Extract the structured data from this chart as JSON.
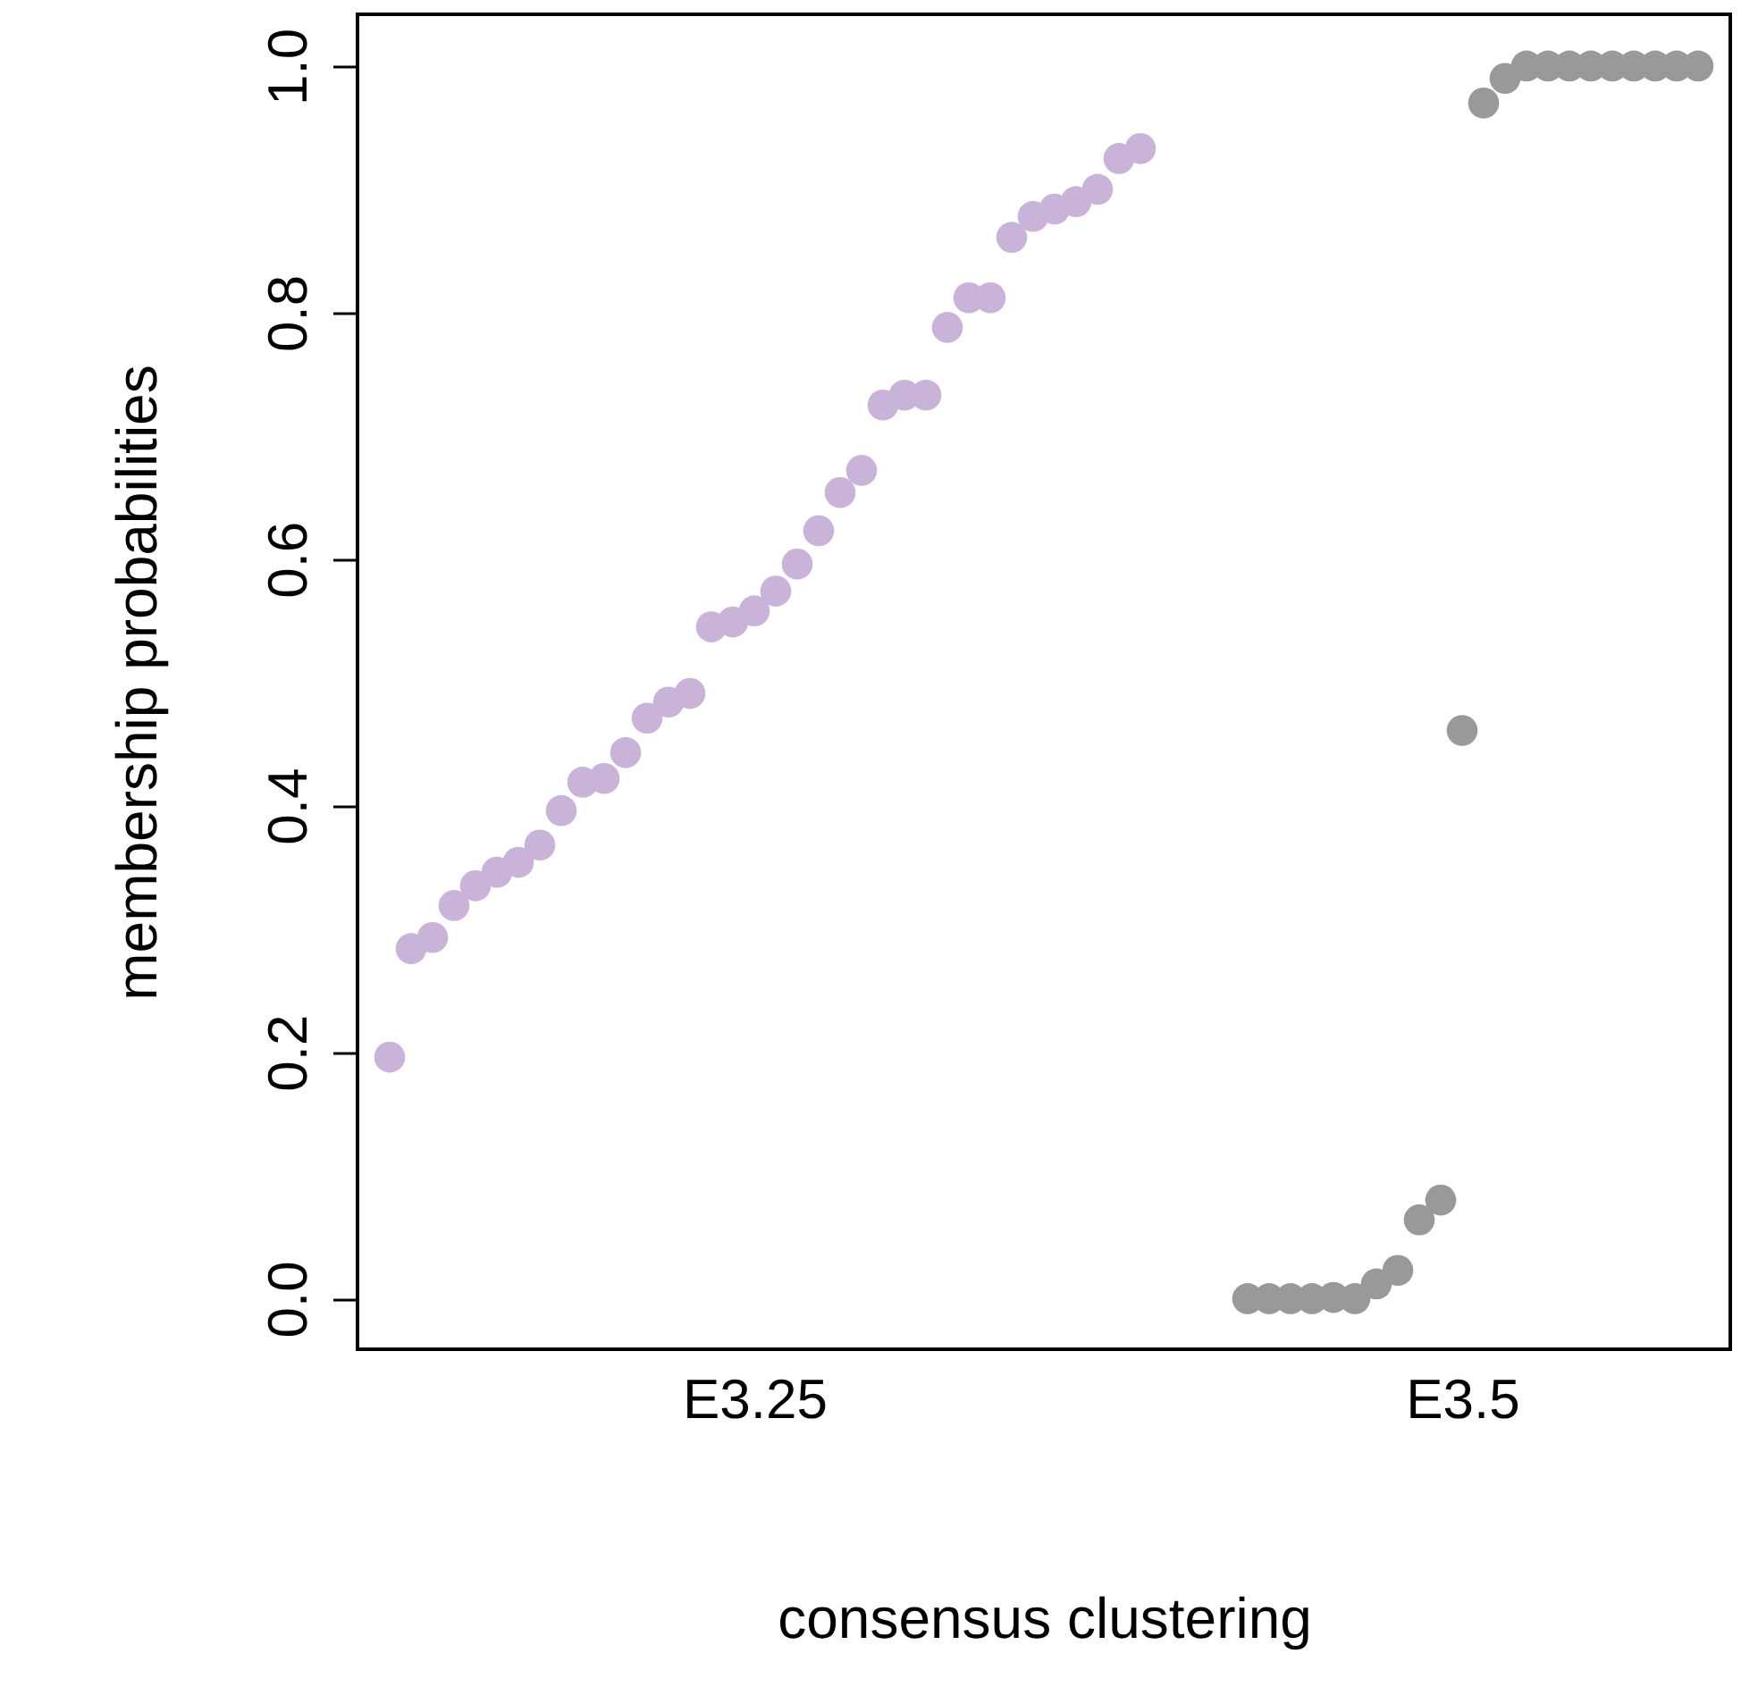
{
  "chart_data": {
    "type": "scatter",
    "xlabel": "consensus clustering",
    "ylabel": "membership probabilities",
    "categories": [
      null,
      null,
      null,
      null,
      null,
      null,
      null,
      null,
      null,
      null,
      null,
      null,
      null,
      null,
      null,
      null,
      null,
      null,
      "E3.25",
      null,
      null,
      null,
      null,
      null,
      null,
      null,
      null,
      null,
      null,
      null,
      null,
      null,
      null,
      null,
      null,
      null,
      null,
      null,
      null,
      null,
      null,
      null,
      null,
      null,
      null,
      null,
      null,
      null,
      null,
      null,
      null,
      "E3.5",
      null,
      null,
      null,
      null,
      null,
      null,
      null,
      null,
      null,
      null,
      null,
      null
    ],
    "ylim": [
      -0.041,
      1.042
    ],
    "yticks": [
      {
        "value": 0,
        "label": "0.0"
      },
      0.2,
      0.4,
      0.6,
      0.8,
      {
        "value": 1,
        "label": "1.0"
      }
    ],
    "marker": "circle",
    "series": [
      {
        "color": "#c9b3d9",
        "values": [
          null,
          0.196,
          0.284,
          0.293,
          0.319,
          0.335,
          0.346,
          0.354,
          0.368,
          0.396,
          0.419,
          0.422,
          0.443,
          0.471,
          0.484,
          0.491,
          0.545,
          0.549,
          0.558,
          0.574,
          0.596,
          0.623,
          0.654,
          0.672,
          0.725,
          0.733,
          0.733,
          0.788,
          0.812,
          0.812,
          0.861,
          0.878,
          0.884,
          0.89,
          0.9,
          0.925,
          0.933,
          null,
          null,
          null,
          null,
          null,
          null,
          null,
          null,
          null,
          null,
          null,
          null,
          null,
          null,
          null,
          null,
          null,
          null,
          null,
          null,
          null,
          null,
          null,
          null,
          null,
          null,
          null
        ]
      },
      {
        "color": "#999999",
        "values": [
          null,
          null,
          null,
          null,
          null,
          null,
          null,
          null,
          null,
          null,
          null,
          null,
          null,
          null,
          null,
          null,
          null,
          null,
          null,
          null,
          null,
          null,
          null,
          null,
          null,
          null,
          null,
          null,
          null,
          null,
          null,
          null,
          null,
          null,
          null,
          null,
          null,
          null,
          null,
          null,
          null,
          0,
          0,
          0,
          0,
          0.001,
          0,
          0.012,
          0.023,
          0.064,
          0.08,
          0.461,
          0.97,
          0.99,
          1,
          1,
          1,
          1,
          1,
          1,
          1,
          1,
          1,
          null
        ]
      }
    ]
  }
}
